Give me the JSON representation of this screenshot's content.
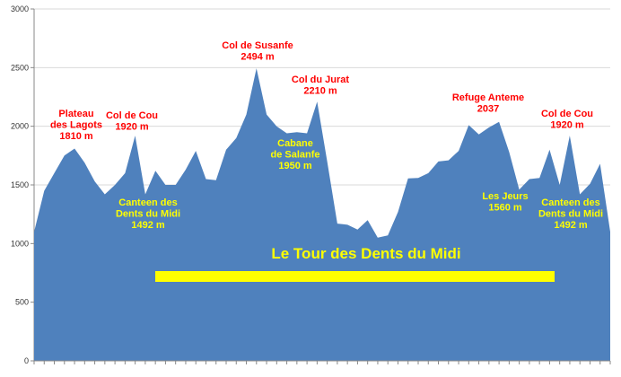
{
  "chart_data": {
    "type": "area",
    "title": "Le Tour des Dents du Midi",
    "xlabel": "",
    "ylabel": "",
    "ylim": [
      0,
      3000
    ],
    "y_ticks": [
      "0",
      "500",
      "1000",
      "1500",
      "2000",
      "2500",
      "3000"
    ],
    "grid": true,
    "colors": {
      "area": "#4f81bd",
      "highlight": "#ffff00",
      "red_text": "#ff0000",
      "yellow_text": "#ffff00",
      "title_text": "#ffff00"
    },
    "series": [
      {
        "values": [
          1100,
          1450,
          1600,
          1750,
          1810,
          1690,
          1530,
          1420,
          1500,
          1600,
          1920,
          1420,
          1620,
          1500,
          1500,
          1630,
          1790,
          1550,
          1540,
          1800,
          1900,
          2100,
          2494,
          2100,
          2000,
          1940,
          1950,
          1940,
          2210,
          1700,
          1170,
          1160,
          1120,
          1200,
          1050,
          1070,
          1270,
          1555,
          1560,
          1600,
          1700,
          1710,
          1790,
          2010,
          1930,
          1990,
          2037,
          1780,
          1460,
          1550,
          1560,
          1800,
          1500,
          1920,
          1420,
          1510,
          1680,
          1100
        ]
      }
    ],
    "annotations": [
      {
        "lines": [
          "Plateau",
          "des Lagots",
          "1810 m"
        ],
        "color": "red",
        "at_index": 4,
        "offset": "above"
      },
      {
        "lines": [
          "Col de Cou",
          "1920 m"
        ],
        "color": "red",
        "at_index": 10,
        "offset": "above"
      },
      {
        "lines": [
          "Canteen des",
          "Dents du Midi",
          "1492 m"
        ],
        "color": "yellow",
        "at_index": 13,
        "offset": "inside"
      },
      {
        "lines": [
          "Col de Susanfe",
          "2494 m"
        ],
        "color": "red",
        "at_index": 22,
        "offset": "above"
      },
      {
        "lines": [
          "Col du Jurat",
          "2210 m"
        ],
        "color": "red",
        "at_index": 28,
        "offset": "above"
      },
      {
        "lines": [
          "Cabane",
          "de Salanfe",
          "1950 m"
        ],
        "color": "yellow",
        "at_index": 25,
        "offset": "inside"
      },
      {
        "lines": [
          "Refuge Anteme",
          "2037"
        ],
        "color": "red",
        "at_index": 45,
        "offset": "above"
      },
      {
        "lines": [
          "Les Jeurs",
          "1560 m"
        ],
        "color": "yellow",
        "at_index": 47,
        "offset": "inside"
      },
      {
        "lines": [
          "Col de Cou",
          "1920 m"
        ],
        "color": "red",
        "at_index": 53,
        "offset": "above"
      },
      {
        "lines": [
          "Canteen des",
          "Dents du Midi",
          "1492 m"
        ],
        "color": "yellow",
        "at_index": 55,
        "offset": "inside"
      }
    ]
  }
}
